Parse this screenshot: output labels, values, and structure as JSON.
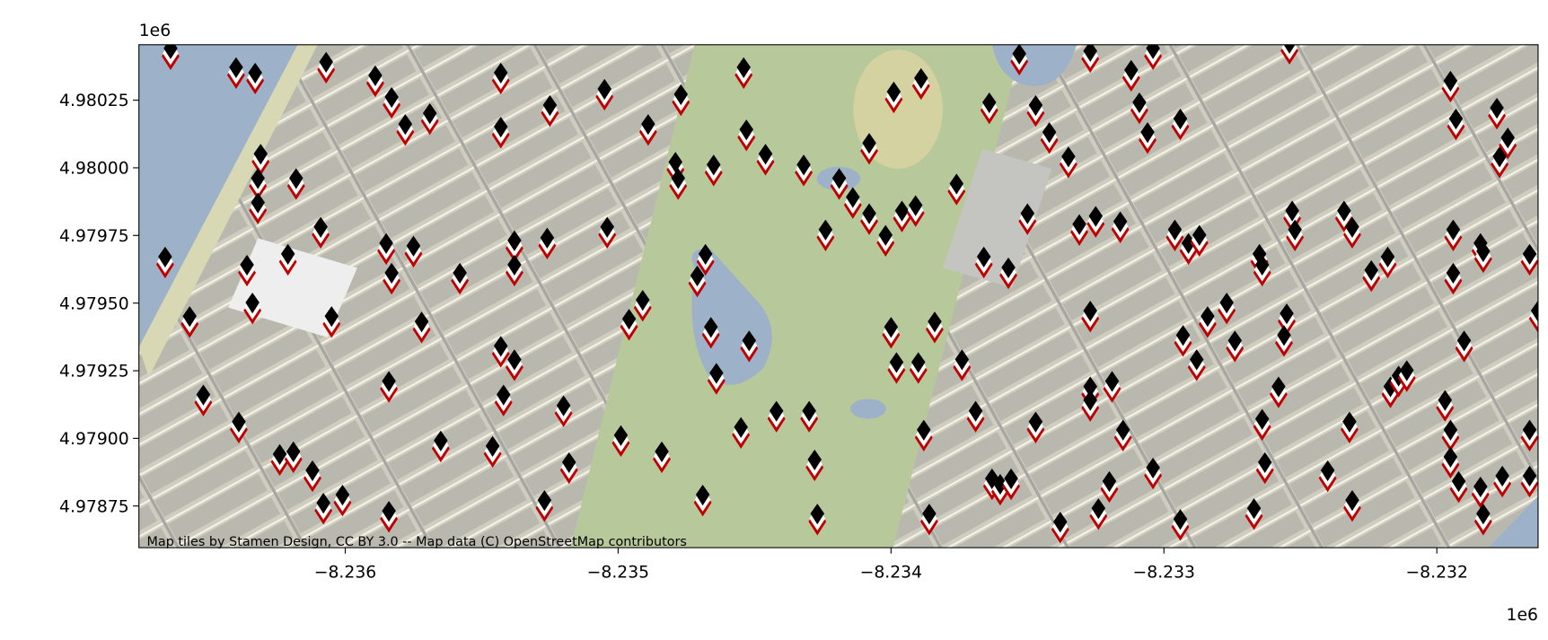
{
  "chart_data": {
    "type": "scatter",
    "x_offset": "1e6",
    "y_offset": "1e6",
    "attribution": "Map tiles by Stamen Design, CC BY 3.0 -- Map data (C) OpenStreetMap contributors",
    "xlim": [
      -8.236756,
      -8.231629
    ],
    "ylim": [
      4.978596,
      4.980455
    ],
    "xticks": [
      {
        "value": -8.236,
        "label": "−8.236"
      },
      {
        "value": -8.235,
        "label": "−8.235"
      },
      {
        "value": -8.234,
        "label": "−8.234"
      },
      {
        "value": -8.233,
        "label": "−8.233"
      },
      {
        "value": -8.232,
        "label": "−8.232"
      }
    ],
    "yticks": [
      4.97875,
      {
        "value": 4.979,
        "label": "4.97900"
      },
      4.97925,
      {
        "value": 4.9795,
        "label": "4.97950"
      },
      4.97975,
      {
        "value": 4.98,
        "label": "4.98000"
      },
      4.98025
    ],
    "color": "#c00000",
    "x": [
      -8.23664,
      -8.2364,
      -8.23633,
      -8.23607,
      -8.23589,
      -8.23583,
      -8.23578,
      -8.23569,
      -8.23543,
      -8.23543,
      -8.23525,
      -8.23505,
      -8.23477,
      -8.23489,
      -8.23479,
      -8.23478,
      -8.23465,
      -8.23454,
      -8.23453,
      -8.23446,
      -8.23432,
      -8.23419,
      -8.23414,
      -8.23408,
      -8.23408,
      -8.23402,
      -8.23396,
      -8.23391,
      -8.23424,
      -8.23399,
      -8.23389,
      -8.23364,
      -8.23353,
      -8.23347,
      -8.23342,
      -8.23335,
      -8.23327,
      -8.23312,
      -8.23309,
      -8.23306,
      -8.23304,
      -8.23294,
      -8.23254,
      -8.23195,
      -8.23193,
      -8.23178,
      -8.23174,
      -8.23177,
      -8.23631,
      -8.23632,
      -8.23632,
      -8.23618,
      -8.23609,
      -8.23666,
      -8.23636,
      -8.23621,
      -8.23634,
      -8.23657,
      -8.23605,
      -8.23585,
      -8.23583,
      -8.23575,
      -8.23558,
      -8.23538,
      -8.23538,
      -8.23526,
      -8.23504,
      -8.23468,
      -8.23471,
      -8.23491,
      -8.23496,
      -8.23466,
      -8.23452,
      -8.23464,
      -8.23543,
      -8.23538,
      -8.23572,
      -8.23584,
      -8.23542,
      -8.2352,
      -8.23652,
      -8.23639,
      -8.23624,
      -8.23619,
      -8.23612,
      -8.23601,
      -8.23608,
      -8.23584,
      -8.23565,
      -8.23546,
      -8.23518,
      -8.23527,
      -8.23499,
      -8.23484,
      -8.23469,
      -8.23455,
      -8.23442,
      -8.2343,
      -8.23428,
      -8.23427,
      -8.234,
      -8.23398,
      -8.2339,
      -8.23384,
      -8.23388,
      -8.23386,
      -8.23376,
      -8.23366,
      -8.23357,
      -8.2335,
      -8.23331,
      -8.23325,
      -8.23316,
      -8.23327,
      -8.23327,
      -8.23327,
      -8.23319,
      -8.23315,
      -8.23304,
      -8.2332,
      -8.23324,
      -8.23338,
      -8.23347,
      -8.23369,
      -8.23374,
      -8.23363,
      -8.2336,
      -8.23356,
      -8.23296,
      -8.23291,
      -8.23287,
      -8.23265,
      -8.23264,
      -8.23253,
      -8.23252,
      -8.23234,
      -8.23231,
      -8.23224,
      -8.23218,
      -8.23194,
      -8.23194,
      -8.23184,
      -8.23183,
      -8.23166,
      -8.23277,
      -8.23284,
      -8.23293,
      -8.23288,
      -8.23274,
      -8.23255,
      -8.23256,
      -8.23258,
      -8.23264,
      -8.23263,
      -8.23267,
      -8.23294,
      -8.2324,
      -8.23232,
      -8.23231,
      -8.23217,
      -8.23214,
      -8.23211,
      -8.23197,
      -8.23195,
      -8.23195,
      -8.23192,
      -8.23184,
      -8.23183,
      -8.23176,
      -8.23166,
      -8.23166,
      -8.2319,
      -8.23163
    ],
    "y": [
      4.98042,
      4.98035,
      4.98033,
      4.98037,
      4.98032,
      4.98024,
      4.98014,
      4.98018,
      4.98013,
      4.98033,
      4.98021,
      4.98027,
      4.98025,
      4.98014,
      4.98,
      4.97994,
      4.97999,
      4.98035,
      4.98012,
      4.98003,
      4.97999,
      4.97994,
      4.97987,
      4.98007,
      4.97981,
      4.97973,
      4.97982,
      4.97984,
      4.97975,
      4.98026,
      4.98031,
      4.98022,
      4.9804,
      4.98021,
      4.98011,
      4.98002,
      4.98041,
      4.98034,
      4.98022,
      4.98011,
      4.98042,
      4.98016,
      4.98044,
      4.9803,
      4.98016,
      4.9802,
      4.98009,
      4.98002,
      4.98003,
      4.97994,
      4.97985,
      4.97994,
      4.97976,
      4.97965,
      4.97962,
      4.97966,
      4.97948,
      4.97943,
      4.97943,
      4.9797,
      4.97959,
      4.97969,
      4.97959,
      4.97971,
      4.97962,
      4.97972,
      4.97976,
      4.97966,
      4.97958,
      4.97949,
      4.97942,
      4.97939,
      4.97934,
      4.97922,
      4.97932,
      4.97927,
      4.97941,
      4.97919,
      4.97914,
      4.9791,
      4.97914,
      4.97904,
      4.97892,
      4.97893,
      4.97886,
      4.97877,
      4.97874,
      4.97871,
      4.97897,
      4.97895,
      4.97889,
      4.97875,
      4.97899,
      4.97893,
      4.97877,
      4.97902,
      4.97908,
      4.97908,
      4.9789,
      4.9787,
      4.97939,
      4.97926,
      4.97926,
      4.97941,
      4.97901,
      4.9787,
      4.97992,
      4.97965,
      4.97961,
      4.97981,
      4.97977,
      4.9798,
      4.97978,
      4.97945,
      4.97917,
      4.97912,
      4.97919,
      4.97901,
      4.97887,
      4.97882,
      4.97872,
      4.97867,
      4.97904,
      4.97908,
      4.97927,
      4.97883,
      4.97881,
      4.97883,
      4.97975,
      4.9797,
      4.97973,
      4.97966,
      4.97962,
      4.97982,
      4.97975,
      4.97982,
      4.97976,
      4.9796,
      4.97965,
      4.97975,
      4.97959,
      4.9797,
      4.97967,
      4.97966,
      4.97948,
      4.97943,
      4.97936,
      4.97927,
      4.97934,
      4.97944,
      4.97936,
      4.97917,
      4.97905,
      4.97889,
      4.97872,
      4.97868,
      4.97886,
      4.97904,
      4.97875,
      4.97917,
      4.97921,
      4.97923,
      4.97912,
      4.97901,
      4.97891,
      4.97882,
      4.9788,
      4.9787,
      4.97884,
      4.97884,
      4.97901,
      4.97934,
      4.97945
    ]
  }
}
